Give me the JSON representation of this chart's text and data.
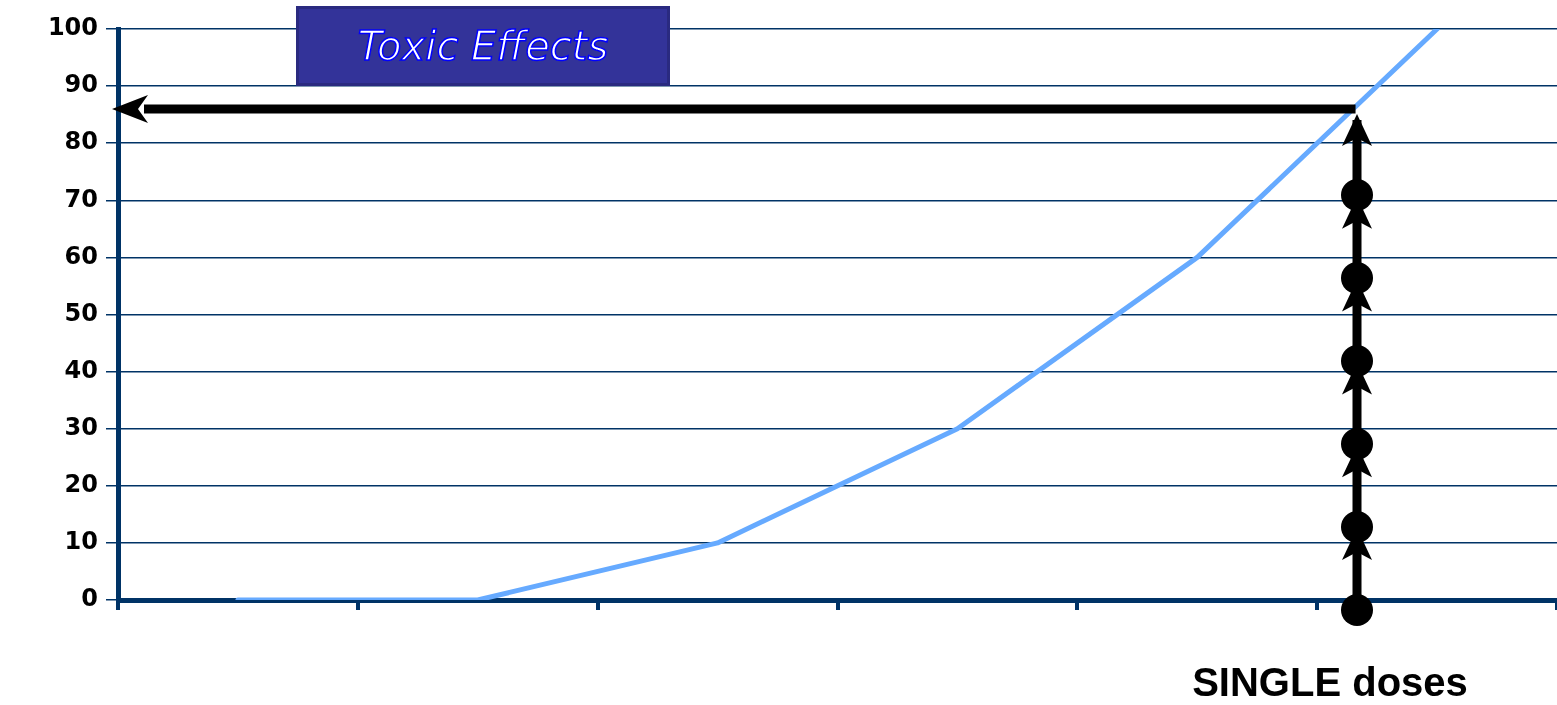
{
  "chart_data": {
    "type": "line",
    "title": "Toxic Effects",
    "xlabel": "SINGLE doses",
    "categories": [
      null,
      null,
      null,
      null,
      null,
      null
    ],
    "series": [
      {
        "color": "#66aaff",
        "values": [
          0,
          0,
          10,
          30,
          60,
          100
        ]
      }
    ],
    "ylim": [
      0,
      100
    ],
    "yticks": [
      0,
      10,
      20,
      30,
      40,
      50,
      60,
      70,
      80,
      90,
      100
    ],
    "ref_lines": [
      {
        "axis": "y",
        "value": 86,
        "color": "#000000"
      }
    ],
    "grid": "y",
    "legend": false,
    "tick_labels": "y",
    "marker": "none",
    "line_style": "solid"
  }
}
